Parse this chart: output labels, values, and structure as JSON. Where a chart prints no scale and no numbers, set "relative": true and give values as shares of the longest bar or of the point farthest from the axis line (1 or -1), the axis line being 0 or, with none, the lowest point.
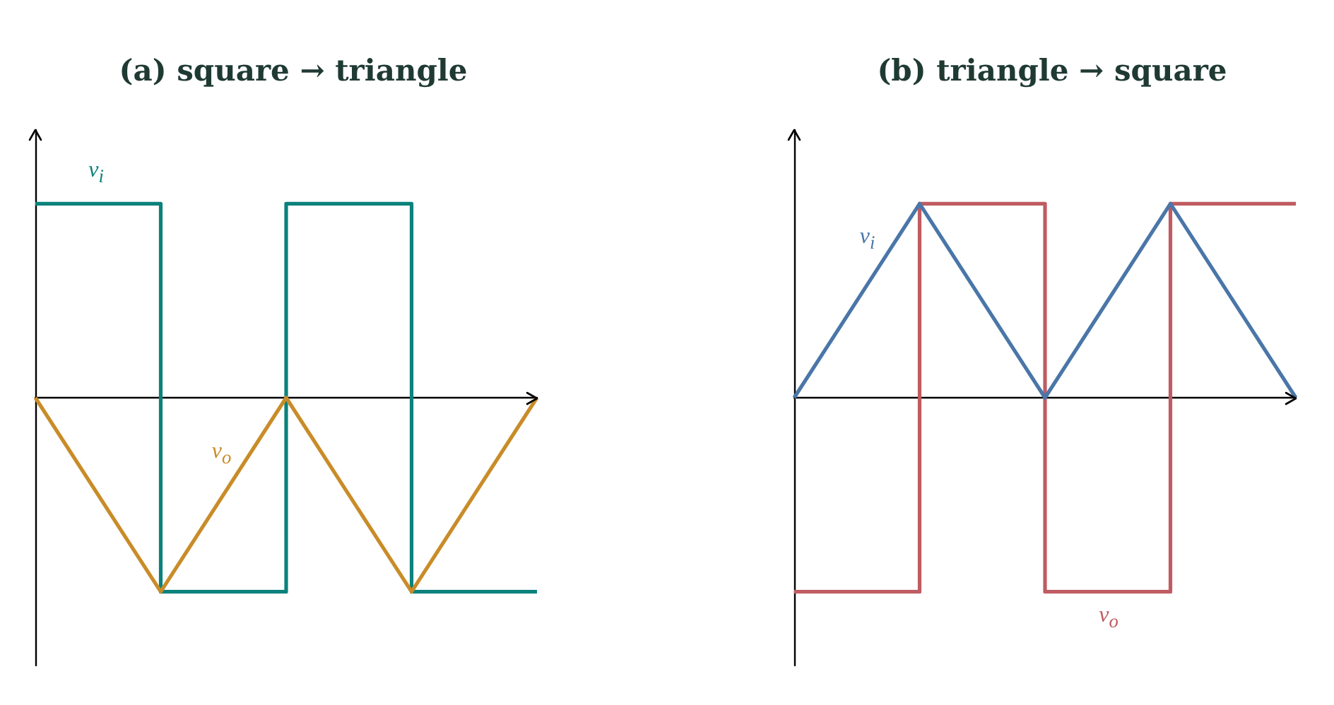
{
  "chart_data": [
    {
      "type": "line",
      "title": "(a) square → triangle",
      "relative": true,
      "categories": [
        null,
        null,
        null,
        null,
        null
      ],
      "marker": "none",
      "legend": false,
      "grid": false,
      "series": [
        {
          "name": "v$_{i}$",
          "type": "step",
          "color": "#0b827c",
          "values": [
            1,
            -1,
            1,
            -1,
            -1
          ]
        },
        {
          "name": "v$_{o}$",
          "type": "line",
          "color": "#c98c28",
          "values": [
            0,
            -1,
            0,
            -1,
            0
          ]
        }
      ]
    },
    {
      "type": "line",
      "title": "(b) triangle → square",
      "relative": true,
      "categories": [
        null,
        null,
        null,
        null,
        null
      ],
      "marker": "none",
      "legend": false,
      "grid": false,
      "series": [
        {
          "name": "v$_{i}$",
          "type": "line",
          "color": "#4a76a8",
          "values": [
            0,
            1,
            0,
            1,
            0
          ]
        },
        {
          "name": "v$_{o}$",
          "type": "step",
          "color": "#bf5b62",
          "values": [
            -1,
            1,
            -1,
            1,
            1
          ]
        }
      ]
    }
  ]
}
